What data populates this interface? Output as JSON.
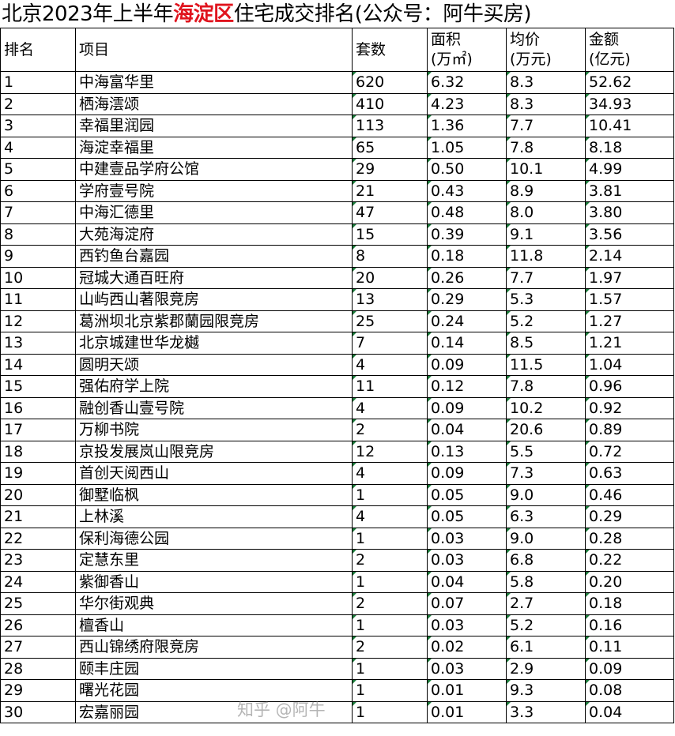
{
  "title": {
    "pre": "北京2023年上半年",
    "highlight": "海淀区",
    "post": "住宅成交排名(公众号：阿牛买房)"
  },
  "colors": {
    "highlight": "#e0141e"
  },
  "headers": [
    "排名",
    "项目",
    "套数",
    "面积\n(万㎡)",
    "均价\n(万元)",
    "金额\n(亿元)"
  ],
  "headers_lines": [
    [
      "排名"
    ],
    [
      "项目"
    ],
    [
      "套数"
    ],
    [
      "面积",
      "(万㎡)"
    ],
    [
      "均价",
      "(万元)"
    ],
    [
      "金额",
      "(亿元)"
    ]
  ],
  "rows": [
    [
      "1",
      "中海富华里",
      "620",
      "6.32",
      "8.3",
      "52.62"
    ],
    [
      "2",
      "栖海澐颂",
      "410",
      "4.23",
      "8.3",
      "34.93"
    ],
    [
      "3",
      "幸福里润园",
      "113",
      "1.36",
      "7.7",
      "10.41"
    ],
    [
      "4",
      "海淀幸福里",
      "65",
      "1.05",
      "7.8",
      "8.18"
    ],
    [
      "5",
      "中建壹品学府公馆",
      "29",
      "0.50",
      "10.1",
      "4.99"
    ],
    [
      "6",
      "学府壹号院",
      "21",
      "0.43",
      "8.9",
      "3.81"
    ],
    [
      "7",
      "中海汇德里",
      "47",
      "0.48",
      "8.0",
      "3.80"
    ],
    [
      "8",
      "大苑海淀府",
      "15",
      "0.39",
      "9.1",
      "3.56"
    ],
    [
      "9",
      "西钓鱼台嘉园",
      "8",
      "0.18",
      "11.8",
      "2.14"
    ],
    [
      "10",
      "冠城大通百旺府",
      "20",
      "0.26",
      "7.7",
      "1.97"
    ],
    [
      "11",
      "山屿西山著限竞房",
      "13",
      "0.29",
      "5.3",
      "1.57"
    ],
    [
      "12",
      "葛洲坝北京紫郡蘭园限竞房",
      "25",
      "0.24",
      "5.2",
      "1.27"
    ],
    [
      "13",
      "北京城建世华龙樾",
      "7",
      "0.14",
      "8.5",
      "1.21"
    ],
    [
      "14",
      "圆明天颂",
      "4",
      "0.09",
      "11.5",
      "1.04"
    ],
    [
      "15",
      "强佑府学上院",
      "11",
      "0.12",
      "7.8",
      "0.96"
    ],
    [
      "16",
      "融创香山壹号院",
      "4",
      "0.09",
      "10.2",
      "0.92"
    ],
    [
      "17",
      "万柳书院",
      "2",
      "0.04",
      "20.6",
      "0.89"
    ],
    [
      "18",
      "京投发展岚山限竞房",
      "12",
      "0.13",
      "5.5",
      "0.72"
    ],
    [
      "19",
      "首创天阅西山",
      "4",
      "0.09",
      "7.3",
      "0.63"
    ],
    [
      "20",
      "御墅临枫",
      "1",
      "0.05",
      "9.0",
      "0.46"
    ],
    [
      "21",
      "上林溪",
      "4",
      "0.05",
      "6.3",
      "0.29"
    ],
    [
      "22",
      "保利海德公园",
      "1",
      "0.03",
      "9.0",
      "0.28"
    ],
    [
      "23",
      "定慧东里",
      "2",
      "0.03",
      "6.8",
      "0.22"
    ],
    [
      "24",
      "紫御香山",
      "1",
      "0.04",
      "5.8",
      "0.20"
    ],
    [
      "25",
      "华尔街观典",
      "2",
      "0.07",
      "2.7",
      "0.18"
    ],
    [
      "26",
      "檀香山",
      "1",
      "0.03",
      "5.2",
      "0.16"
    ],
    [
      "27",
      "西山锦绣府限竞房",
      "2",
      "0.02",
      "6.1",
      "0.11"
    ],
    [
      "28",
      "颐丰庄园",
      "1",
      "0.03",
      "2.9",
      "0.09"
    ],
    [
      "29",
      "曙光花园",
      "1",
      "0.01",
      "9.3",
      "0.08"
    ],
    [
      "30",
      "宏嘉丽园",
      "1",
      "0.01",
      "3.3",
      "0.04"
    ]
  ],
  "watermark": "知乎 @阿牛"
}
